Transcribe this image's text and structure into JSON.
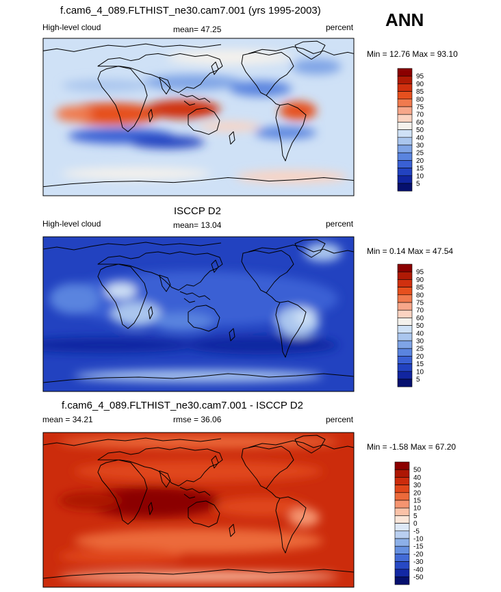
{
  "season": "ANN",
  "panels": [
    {
      "title": "f.cam6_4_089.FLTHIST_ne30.cam7.001 (yrs 1995-2003)",
      "left_label": "High-level cloud",
      "center_label": "mean=  47.25",
      "right_label": "percent",
      "minmax": "Min =  12.76 Max =  93.10",
      "colorbar_labels": [
        "95",
        "90",
        "85",
        "80",
        "75",
        "70",
        "60",
        "50",
        "40",
        "30",
        "25",
        "20",
        "15",
        "10",
        "5"
      ]
    },
    {
      "title": "ISCCP D2",
      "left_label": "High-level cloud",
      "center_label": "mean=  13.04",
      "right_label": "percent",
      "minmax": "Min =  0.14 Max =  47.54",
      "colorbar_labels": [
        "95",
        "90",
        "85",
        "80",
        "75",
        "70",
        "60",
        "50",
        "40",
        "30",
        "25",
        "20",
        "15",
        "10",
        "5"
      ]
    },
    {
      "title": "f.cam6_4_089.FLTHIST_ne30.cam7.001 - ISCCP D2",
      "left_label": "mean =  34.21",
      "center_label": "rmse =  36.06",
      "right_label": "percent",
      "minmax": "Min = -1.58 Max =  67.20",
      "colorbar_labels": [
        "50",
        "40",
        "30",
        "20",
        "15",
        "10",
        "5",
        "0",
        "-5",
        "-10",
        "-15",
        "-20",
        "-30",
        "-40",
        "-50"
      ]
    }
  ],
  "colors": {
    "abs_scale": [
      "#8b0000",
      "#b01a05",
      "#d0300f",
      "#e6501e",
      "#f07a4e",
      "#f7a78a",
      "#fbd3c1",
      "#f4f1ec",
      "#cfe1f6",
      "#aac6ee",
      "#7fa4e6",
      "#5a84df",
      "#3a60d4",
      "#2242c0",
      "#1125a0",
      "#06106e"
    ],
    "diff_scale": [
      "#8b0000",
      "#ad1704",
      "#cc2c0c",
      "#e0461a",
      "#ec6a3a",
      "#f59470",
      "#fbc2a8",
      "#fbe6d9",
      "#dde8f7",
      "#b9cff0",
      "#8db0e8",
      "#6690e0",
      "#436bd6",
      "#2749c4",
      "#1328a4",
      "#06106e"
    ],
    "coast": "#000000"
  },
  "chart_data": [
    {
      "type": "heatmap",
      "title": "f.cam6_4_089.FLTHIST_ne30.cam7.001 (yrs 1995-2003)",
      "variable": "High-level cloud",
      "units": "percent",
      "mean": 47.25,
      "min": 12.76,
      "max": 93.1,
      "levels": [
        5,
        10,
        15,
        20,
        25,
        30,
        40,
        50,
        60,
        70,
        75,
        80,
        85,
        90,
        95
      ]
    },
    {
      "type": "heatmap",
      "title": "ISCCP D2",
      "variable": "High-level cloud",
      "units": "percent",
      "mean": 13.04,
      "min": 0.14,
      "max": 47.54,
      "levels": [
        5,
        10,
        15,
        20,
        25,
        30,
        40,
        50,
        60,
        70,
        75,
        80,
        85,
        90,
        95
      ]
    },
    {
      "type": "heatmap",
      "title": "f.cam6_4_089.FLTHIST_ne30.cam7.001 - ISCCP D2",
      "units": "percent",
      "mean": 34.21,
      "rmse": 36.06,
      "min": -1.58,
      "max": 67.2,
      "levels": [
        -50,
        -40,
        -30,
        -20,
        -15,
        -10,
        -5,
        0,
        5,
        10,
        15,
        20,
        30,
        40,
        50
      ]
    }
  ]
}
